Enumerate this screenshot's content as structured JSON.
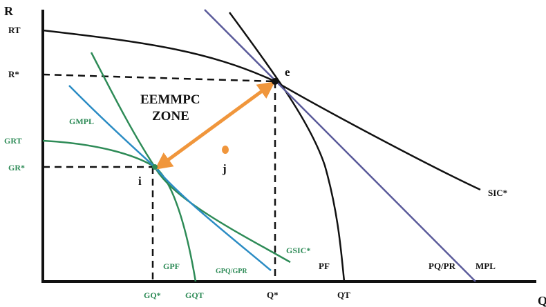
{
  "axes": {
    "y_label": "R",
    "x_label": "Q"
  },
  "colors": {
    "black": "#111111",
    "green": "#2e8b57",
    "blue": "#2b8cc4",
    "purple": "#5a5a9a",
    "orange": "#f0963c",
    "dash": "#111111"
  },
  "labels": {
    "rt": "RT",
    "r_star": "R*",
    "grt": "GRT",
    "gr_star": "GR*",
    "gmpl": "GMPL",
    "zone_line1": "EEMMPC",
    "zone_line2": "ZONE",
    "e": "e",
    "i": "i",
    "j": "j",
    "sic_star": "SIC*",
    "gsic_star": "GSIC*",
    "gpf": "GPF",
    "gpq_gpr": "GPQ/GPR",
    "pf": "PF",
    "pq_pr": "PQ/PR",
    "mpl": "MPL",
    "gq_star": "GQ*",
    "gqt": "GQT",
    "q_star": "Q*",
    "qt": "QT"
  }
}
